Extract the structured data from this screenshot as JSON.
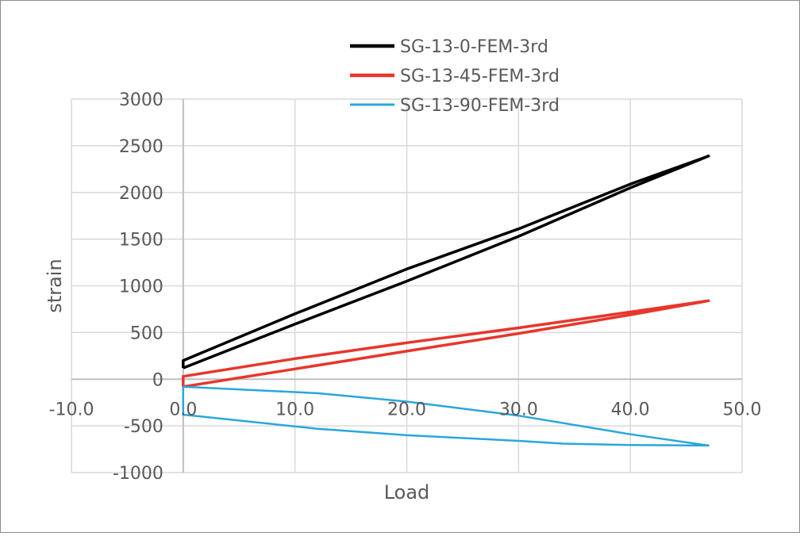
{
  "chart_data": {
    "type": "line",
    "title": "",
    "xlabel": "Load",
    "ylabel": "strain",
    "xlim": [
      -10,
      50
    ],
    "ylim": [
      -1000,
      3000
    ],
    "xticks": [
      "-10.0",
      "0.0",
      "10.0",
      "20.0",
      "30.0",
      "40.0",
      "50.0"
    ],
    "yticks": [
      "3000",
      "2500",
      "2000",
      "1500",
      "1000",
      "500",
      "0",
      "-500",
      "-1000"
    ],
    "grid": true,
    "legend": "top",
    "series": [
      {
        "name": "SG-13-0-FEM-3rd",
        "color": "#000000",
        "points": [
          [
            0,
            120
          ],
          [
            10,
            590
          ],
          [
            20,
            1050
          ],
          [
            30,
            1530
          ],
          [
            40,
            2050
          ],
          [
            47,
            2390
          ],
          [
            40,
            2090
          ],
          [
            30,
            1610
          ],
          [
            20,
            1180
          ],
          [
            10,
            700
          ],
          [
            0,
            200
          ],
          [
            0,
            120
          ]
        ]
      },
      {
        "name": "SG-13-45-FEM-3rd",
        "color": "#e8362b",
        "points": [
          [
            0,
            -80
          ],
          [
            10,
            110
          ],
          [
            20,
            300
          ],
          [
            30,
            490
          ],
          [
            40,
            690
          ],
          [
            47,
            840
          ],
          [
            40,
            720
          ],
          [
            30,
            550
          ],
          [
            20,
            390
          ],
          [
            10,
            220
          ],
          [
            0,
            30
          ],
          [
            0,
            -80
          ]
        ]
      },
      {
        "name": "SG-13-90-FEM-3rd",
        "color": "#2aa6dc",
        "points": [
          [
            0,
            -80
          ],
          [
            12,
            -150
          ],
          [
            20,
            -240
          ],
          [
            30,
            -390
          ],
          [
            40,
            -590
          ],
          [
            47,
            -710
          ],
          [
            40,
            -705
          ],
          [
            34,
            -690
          ],
          [
            30,
            -660
          ],
          [
            20,
            -600
          ],
          [
            12,
            -530
          ],
          [
            0,
            -380
          ],
          [
            0,
            -80
          ]
        ]
      }
    ]
  }
}
